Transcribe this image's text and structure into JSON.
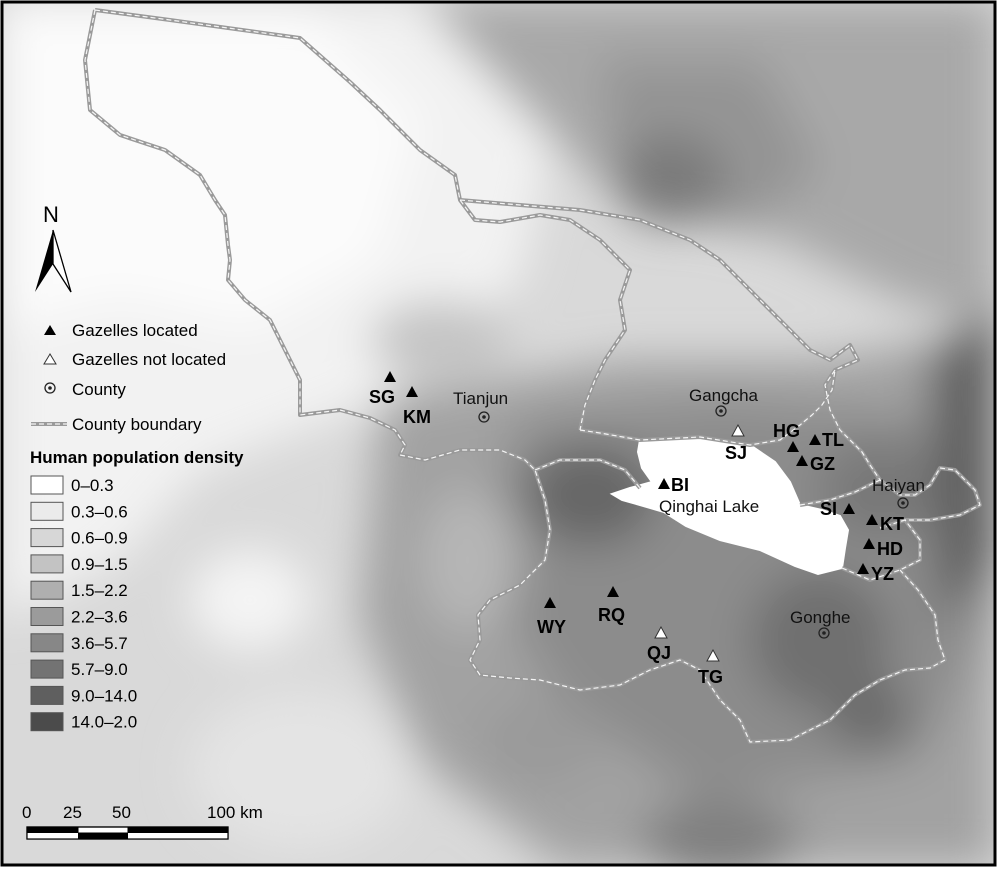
{
  "north_arrow": {
    "label": "N"
  },
  "legend": {
    "symbols": [
      {
        "label": "Gazelles located",
        "icon": "filled-triangle-icon"
      },
      {
        "label": "Gazelles not located",
        "icon": "hollow-triangle-icon"
      },
      {
        "label": "County",
        "icon": "county-dot-icon"
      },
      {
        "label": "County boundary",
        "icon": "boundary-line-icon"
      }
    ],
    "density_title": "Human population density",
    "density_classes": [
      {
        "label": "0–0.3",
        "color": "#ffffff"
      },
      {
        "label": "0.3–0.6",
        "color": "#ebebeb"
      },
      {
        "label": "0.6–0.9",
        "color": "#d7d7d7"
      },
      {
        "label": "0.9–1.5",
        "color": "#c3c3c3"
      },
      {
        "label": "1.5–2.2",
        "color": "#afafaf"
      },
      {
        "label": "2.2–3.6",
        "color": "#9b9b9b"
      },
      {
        "label": "3.6–5.7",
        "color": "#878787"
      },
      {
        "label": "5.7–9.0",
        "color": "#737373"
      },
      {
        "label": "9.0–14.0",
        "color": "#5f5f5f"
      },
      {
        "label": "14.0–2.0",
        "color": "#4b4b4b"
      }
    ]
  },
  "scale_bar": {
    "ticks": [
      "0",
      "25",
      "50",
      "100 km"
    ]
  },
  "lake": {
    "name": "Qinghai Lake"
  },
  "counties": {
    "tianjun": "Tianjun",
    "gangcha": "Gangcha",
    "haiyan": "Haiyan",
    "gonghe": "Gonghe"
  },
  "sites": {
    "sg": {
      "code": "SG",
      "located": true
    },
    "km": {
      "code": "KM",
      "located": true
    },
    "sj": {
      "code": "SJ",
      "located": false
    },
    "hg": {
      "code": "HG",
      "located": true
    },
    "tl": {
      "code": "TL",
      "located": true
    },
    "gz": {
      "code": "GZ",
      "located": true
    },
    "bi": {
      "code": "BI",
      "located": true
    },
    "si": {
      "code": "SI",
      "located": true
    },
    "kt": {
      "code": "KT",
      "located": true
    },
    "hd": {
      "code": "HD",
      "located": true
    },
    "yz": {
      "code": "YZ",
      "located": true
    },
    "wy": {
      "code": "WY",
      "located": true
    },
    "rq": {
      "code": "RQ",
      "located": true
    },
    "qj": {
      "code": "QJ",
      "located": false
    },
    "tg": {
      "code": "TG",
      "located": false
    }
  }
}
